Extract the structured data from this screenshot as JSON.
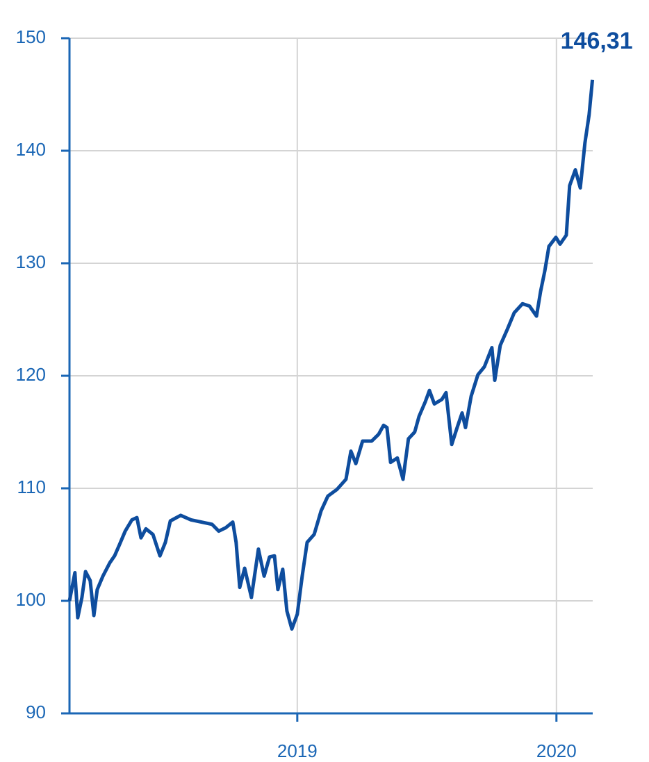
{
  "chart_data": {
    "type": "line",
    "x": [
      2018.121,
      2018.142,
      2018.153,
      2018.169,
      2018.183,
      2018.201,
      2018.215,
      2018.228,
      2018.25,
      2018.277,
      2018.295,
      2018.314,
      2018.336,
      2018.362,
      2018.381,
      2018.397,
      2018.416,
      2018.443,
      2018.47,
      2018.491,
      2018.51,
      2018.55,
      2018.59,
      2018.63,
      2018.671,
      2018.697,
      2018.724,
      2018.751,
      2018.764,
      2018.778,
      2018.797,
      2018.823,
      2018.85,
      2018.872,
      2018.893,
      2018.912,
      2018.925,
      2018.944,
      2018.96,
      2018.979,
      2019.0,
      2019.019,
      2019.038,
      2019.065,
      2019.092,
      2019.118,
      2019.153,
      2019.188,
      2019.207,
      2019.226,
      2019.252,
      2019.287,
      2019.314,
      2019.333,
      2019.346,
      2019.36,
      2019.386,
      2019.408,
      2019.429,
      2019.453,
      2019.47,
      2019.494,
      2019.51,
      2019.529,
      2019.558,
      2019.574,
      2019.596,
      2019.617,
      2019.636,
      2019.649,
      2019.671,
      2019.697,
      2019.722,
      2019.751,
      2019.762,
      2019.783,
      2019.81,
      2019.837,
      2019.869,
      2019.896,
      2019.923,
      2019.939,
      2019.955,
      2019.971,
      2019.998,
      2020.014,
      2020.038,
      2020.051,
      2020.073,
      2020.092,
      2020.11,
      2020.126,
      2020.139
    ],
    "series": [
      {
        "color": "#0e4d9e",
        "values": [
          100.0,
          102.5,
          98.5,
          100.3,
          102.6,
          101.8,
          98.7,
          101.0,
          102.2,
          103.4,
          104.0,
          105.0,
          106.2,
          107.2,
          107.4,
          105.6,
          106.4,
          105.9,
          104.0,
          105.2,
          107.1,
          107.6,
          107.2,
          107.0,
          106.8,
          106.2,
          106.5,
          107.0,
          105.2,
          101.2,
          102.9,
          100.3,
          104.6,
          102.2,
          103.9,
          104.0,
          101.0,
          102.8,
          99.1,
          97.5,
          98.8,
          102.2,
          105.2,
          105.9,
          108.0,
          109.3,
          109.9,
          110.8,
          113.3,
          112.2,
          114.2,
          114.2,
          114.8,
          115.6,
          115.4,
          112.3,
          112.7,
          110.8,
          114.4,
          115.0,
          116.4,
          117.7,
          118.7,
          117.5,
          117.9,
          118.5,
          113.9,
          115.4,
          116.7,
          115.4,
          118.2,
          120.1,
          120.8,
          122.5,
          119.6,
          122.7,
          124.1,
          125.6,
          126.4,
          126.2,
          125.3,
          127.5,
          129.3,
          131.5,
          132.3,
          131.7,
          132.5,
          136.9,
          138.3,
          136.7,
          140.7,
          143.2,
          146.31
        ],
        "value_labels": [
          null,
          null,
          null,
          null,
          null,
          null,
          null,
          null,
          null,
          null,
          null,
          null,
          null,
          null,
          null,
          null,
          null,
          null,
          null,
          null,
          null,
          null,
          null,
          null,
          null,
          null,
          null,
          null,
          null,
          null,
          null,
          null,
          null,
          null,
          null,
          null,
          null,
          null,
          null,
          null,
          null,
          null,
          null,
          null,
          null,
          null,
          null,
          null,
          null,
          null,
          null,
          null,
          null,
          null,
          null,
          null,
          null,
          null,
          null,
          null,
          null,
          null,
          null,
          null,
          null,
          null,
          null,
          null,
          null,
          null,
          null,
          null,
          null,
          null,
          null,
          null,
          null,
          null,
          null,
          null,
          null,
          null,
          null,
          null,
          null,
          null,
          null,
          null,
          null,
          null,
          null,
          null,
          "146,31"
        ]
      }
    ],
    "xlim": [
      2018.121,
      2020.14
    ],
    "xticks": [
      2019,
      2020
    ],
    "ylim": [
      90,
      150
    ],
    "yticks": [
      90,
      100,
      110,
      120,
      130,
      140,
      150
    ],
    "grid": true
  }
}
